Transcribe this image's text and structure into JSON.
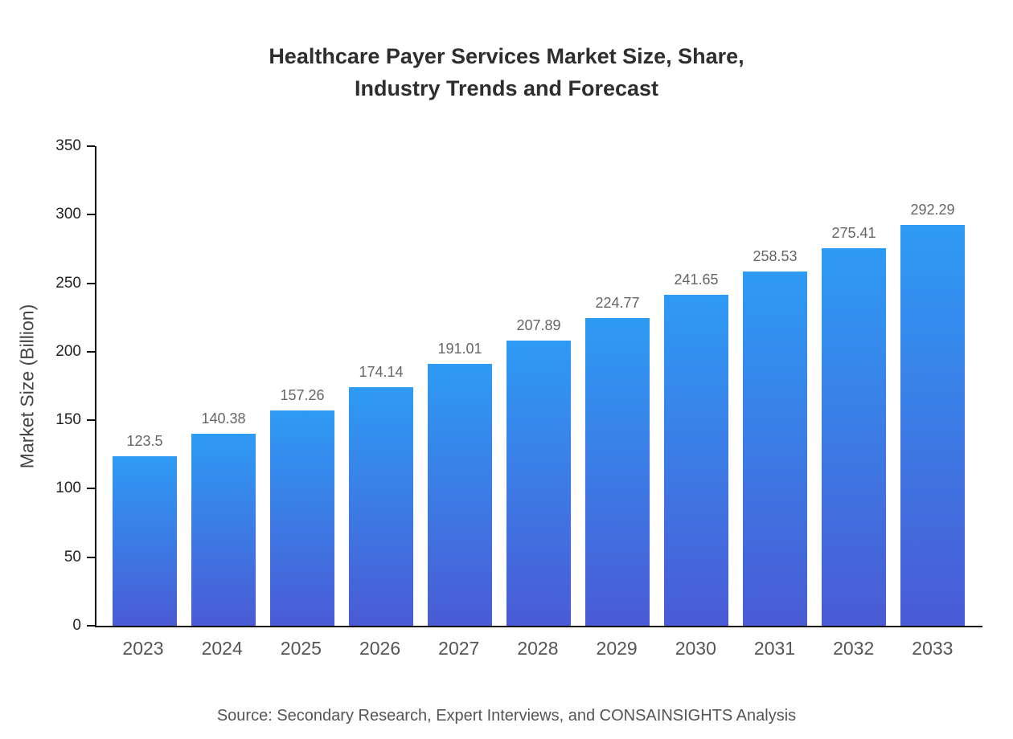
{
  "title": {
    "line1": "Healthcare Payer Services Market Size, Share,",
    "line2": "Industry Trends and Forecast"
  },
  "source": "Source: Secondary Research, Expert Interviews, and CONSAINSIGHTS Analysis",
  "chart_data": {
    "type": "bar",
    "title": "Healthcare Payer Services Market Size, Share, Industry Trends and Forecast",
    "xlabel": "",
    "ylabel": "Market Size (Billion)",
    "categories": [
      "2023",
      "2024",
      "2025",
      "2026",
      "2027",
      "2028",
      "2029",
      "2030",
      "2031",
      "2032",
      "2033"
    ],
    "values": [
      123.5,
      140.38,
      157.26,
      174.14,
      191.01,
      207.89,
      224.77,
      241.65,
      258.53,
      275.41,
      292.29
    ],
    "ylim": [
      0,
      350
    ],
    "yticks": [
      0,
      50,
      100,
      150,
      200,
      250,
      300,
      350
    ],
    "grid": "off",
    "legend": "none",
    "bar_color_top": "#2e9bf5",
    "bar_color_bottom": "#4a5bd5",
    "value_label_color": "#666666"
  }
}
